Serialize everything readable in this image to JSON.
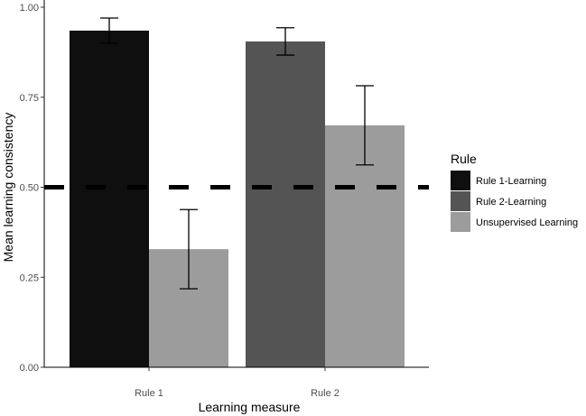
{
  "chart_data": {
    "type": "bar",
    "title": "",
    "xlabel": "Learning measure",
    "ylabel": "Mean learning consistency",
    "ylim": [
      0,
      1
    ],
    "yticks": [
      "0.00",
      "0.25",
      "0.50",
      "0.75",
      "1.00"
    ],
    "ytick_values": [
      0,
      0.25,
      0.5,
      0.75,
      1.0
    ],
    "categories": [
      "Rule 1",
      "Rule 2"
    ],
    "legend_title": "Rule",
    "legend_position": "right",
    "grid": false,
    "reference_line": {
      "y": 0.5,
      "style": "dashed",
      "color": "#000000"
    },
    "series": [
      {
        "name": "Rule 1-Learning",
        "color": "#0f0f0f",
        "values": [
          0.935,
          null
        ],
        "error_low": [
          0.9,
          null
        ],
        "error_high": [
          0.97,
          null
        ]
      },
      {
        "name": "Rule 2-Learning",
        "color": "#545454",
        "values": [
          null,
          0.905
        ],
        "error_low": [
          null,
          0.867
        ],
        "error_high": [
          null,
          0.943
        ]
      },
      {
        "name": "Unsupervised Learning",
        "color": "#9c9c9c",
        "values": [
          0.328,
          0.672
        ],
        "error_low": [
          0.218,
          0.562
        ],
        "error_high": [
          0.438,
          0.782
        ]
      }
    ]
  }
}
